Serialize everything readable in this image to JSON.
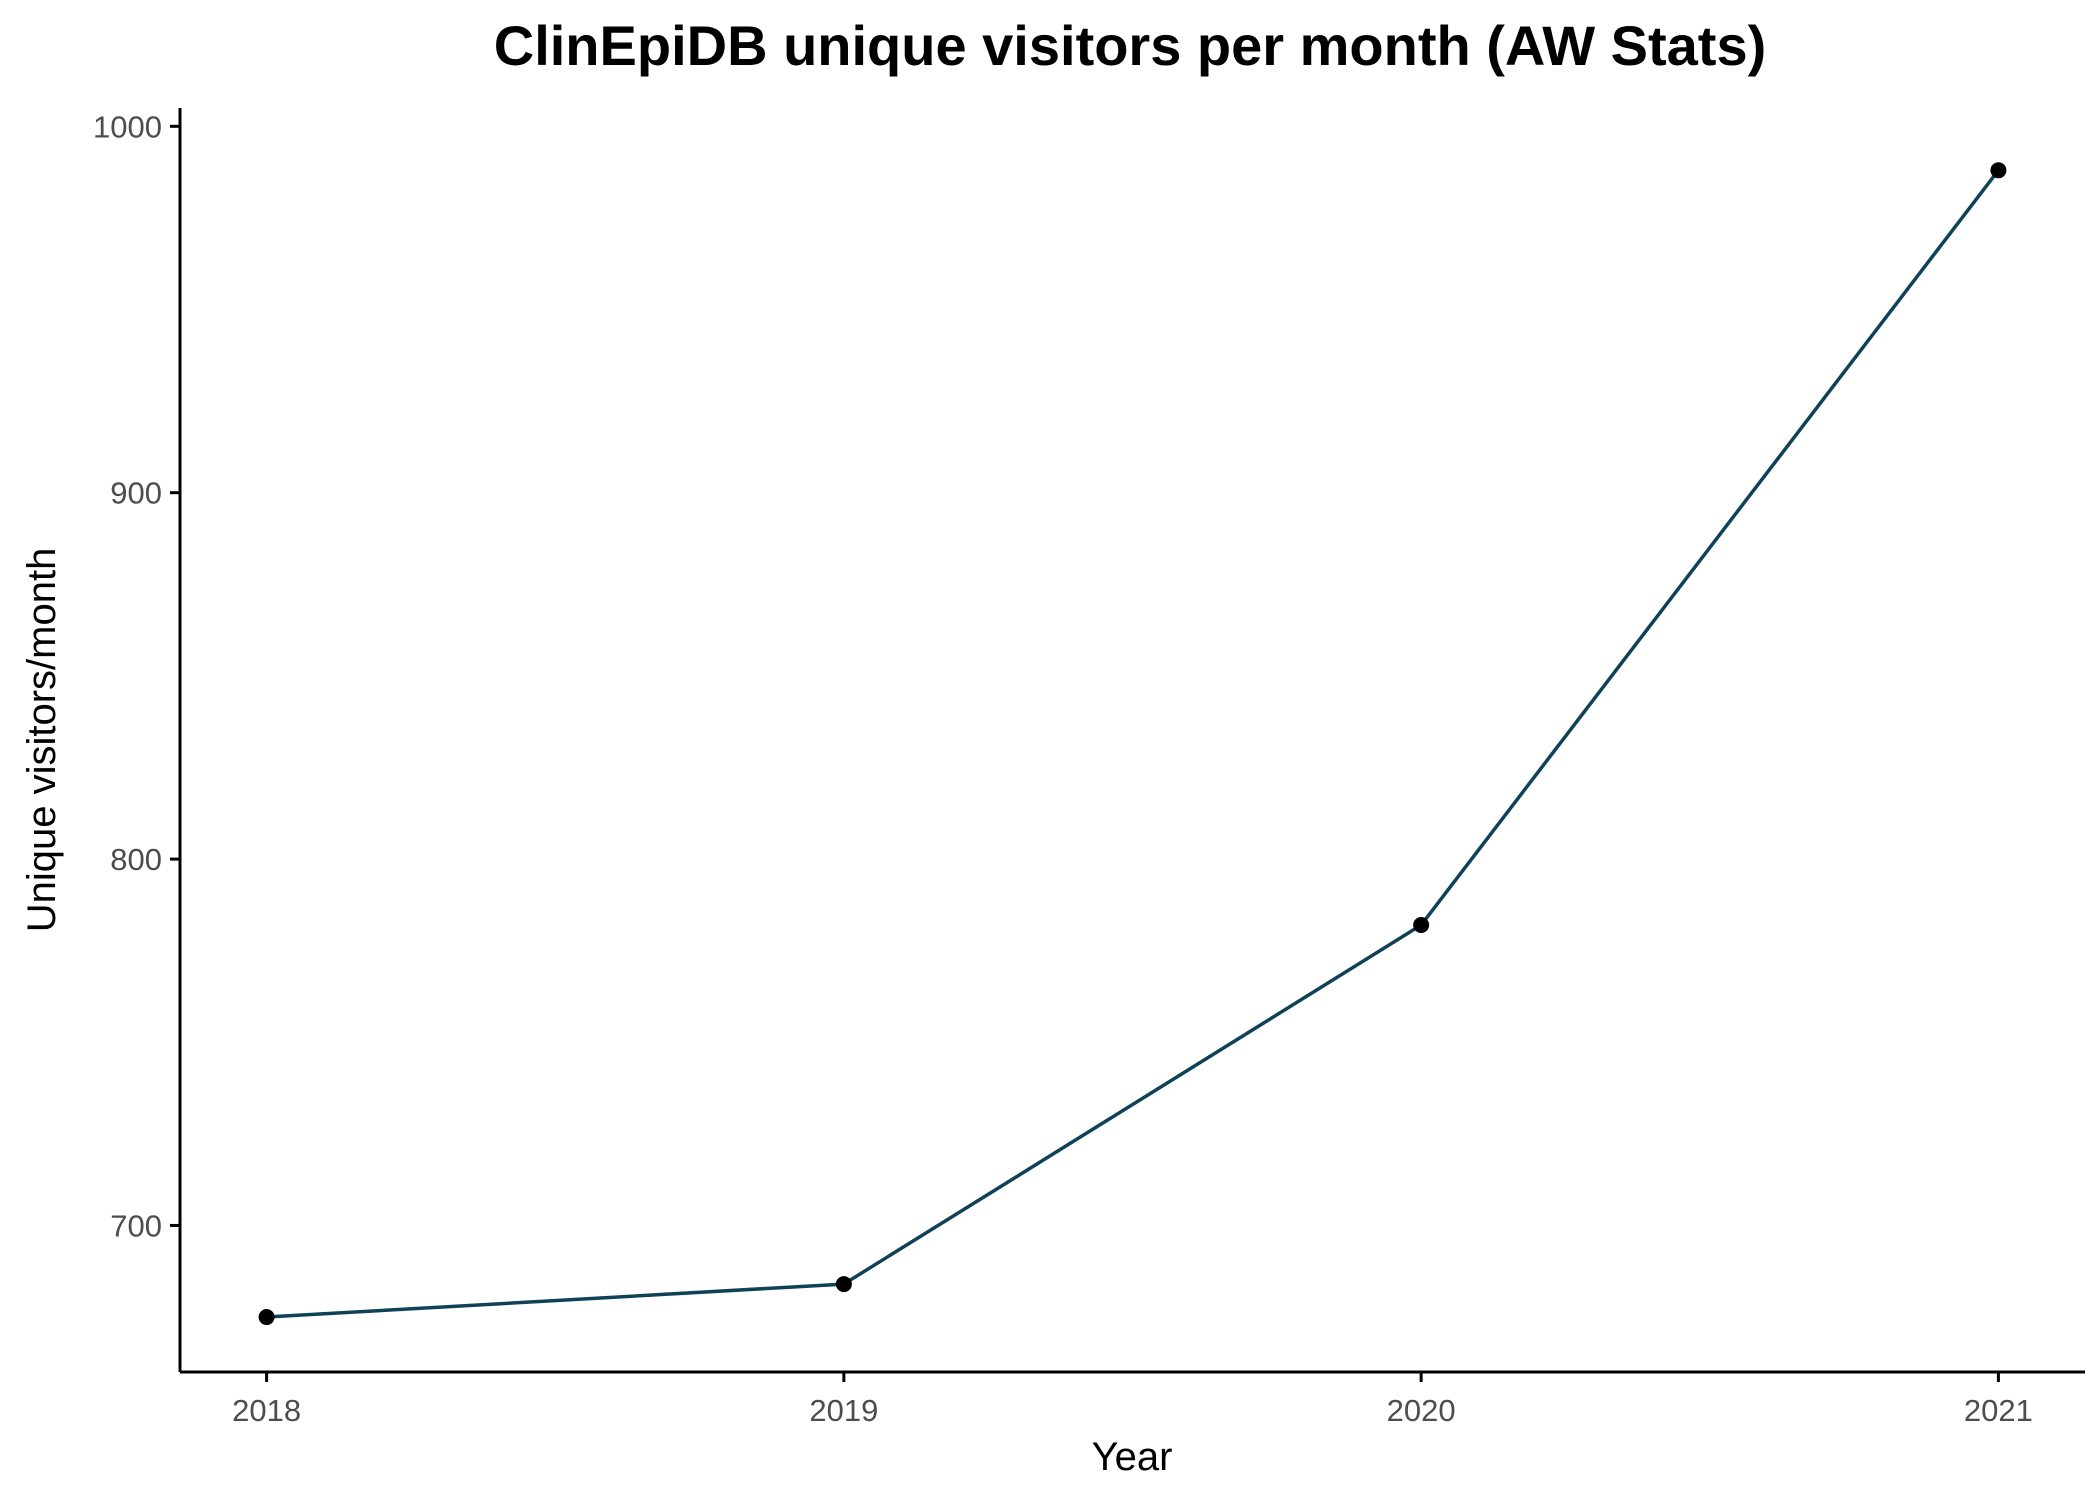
{
  "chart_data": {
    "type": "line",
    "title": "ClinEpiDB unique visitors per month (AW Stats)",
    "xlabel": "Year",
    "ylabel": "Unique visitors/month",
    "x": [
      2018,
      2019,
      2020,
      2021
    ],
    "x_tick_labels": [
      "2018",
      "2019",
      "2020",
      "2021"
    ],
    "y_ticks": [
      700,
      800,
      900,
      1000
    ],
    "y_tick_labels": [
      "700",
      "800",
      "900",
      "1000"
    ],
    "ylim": [
      660,
      1005
    ],
    "xlim": [
      2017.85,
      2021.15
    ],
    "series": [
      {
        "values": [
          675,
          684,
          782,
          988
        ],
        "color": "#0f4257"
      }
    ],
    "marker_color": "#000000",
    "grid": false,
    "legend": "none"
  }
}
